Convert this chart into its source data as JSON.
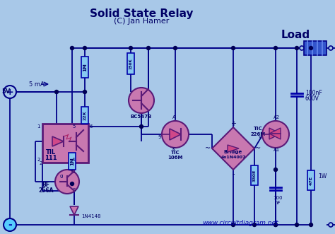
{
  "title": "Solid State Relay",
  "subtitle": "(C) Jan Hamer",
  "bg_color": "#a8c8e8",
  "title_color": "#000066",
  "wire_color": "#000088",
  "comp_fill": "#c878b0",
  "comp_edge": "#5a1a78",
  "res_fill": "#88c8f0",
  "res_edge": "#0000aa",
  "node_color": "#000055",
  "label_color": "#000066",
  "load_fill": "#3355cc",
  "load_stripe": "#6688ee",
  "web_color": "#0000aa",
  "website": "www.circuitdiagram.net"
}
